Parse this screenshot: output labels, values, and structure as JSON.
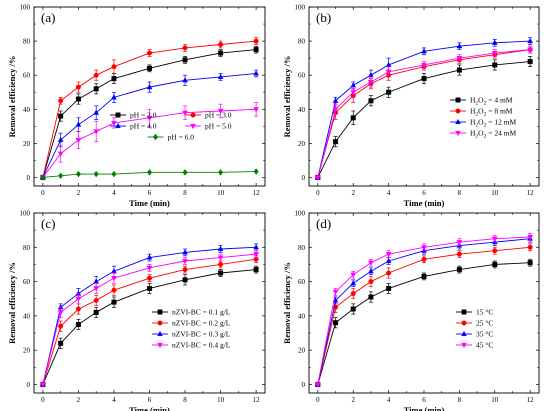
{
  "chart_data": [
    {
      "type": "line",
      "panel_label": "(a)",
      "xlabel": "Time (min)",
      "ylabel": "Removal efficiency /%",
      "xlim": [
        -0.5,
        12.5
      ],
      "ylim": [
        -5,
        100
      ],
      "x_ticks": [
        0,
        1,
        2,
        3,
        4,
        5,
        6,
        7,
        8,
        9,
        10,
        11,
        12
      ],
      "x_tick_labels": [
        "0",
        "2",
        "4",
        "6",
        "8",
        "10",
        "12"
      ],
      "y_ticks": [
        0,
        20,
        40,
        60,
        80,
        100
      ],
      "legend_position": "middle-right",
      "legend_columns": 2,
      "x": [
        0,
        1,
        2,
        3,
        4,
        6,
        8,
        10,
        12
      ],
      "series": [
        {
          "name": "pH = 2.0",
          "color": "#000000",
          "marker": "square",
          "values": [
            0,
            36,
            46,
            52,
            58,
            64,
            69,
            73,
            75
          ],
          "errors": [
            0,
            3,
            3,
            3,
            3,
            2,
            2,
            2,
            2
          ]
        },
        {
          "name": "pH = 3.0",
          "color": "#ff0000",
          "marker": "circle",
          "values": [
            0,
            45,
            53,
            60,
            65,
            73,
            76,
            78,
            80
          ],
          "errors": [
            0,
            2,
            3,
            3,
            4,
            2,
            2,
            2,
            2
          ]
        },
        {
          "name": "pH = 4.0",
          "color": "#0000ff",
          "marker": "triangle-up",
          "values": [
            0,
            22,
            31,
            38,
            47,
            53,
            57,
            59,
            61
          ],
          "errors": [
            0,
            4,
            4,
            4,
            3,
            3,
            3,
            2,
            2
          ]
        },
        {
          "name": "pH = 5.0",
          "color": "#ff00ff",
          "marker": "triangle-down",
          "values": [
            0,
            14,
            22,
            27,
            32,
            35,
            38,
            39,
            40
          ],
          "errors": [
            0,
            5,
            5,
            6,
            3,
            5,
            4,
            4,
            4
          ]
        },
        {
          "name": "pH = 6.0",
          "color": "#008000",
          "marker": "diamond",
          "values": [
            0,
            1,
            2,
            2,
            2,
            3,
            3,
            3,
            3.5
          ],
          "errors": [
            0,
            0,
            0,
            0,
            0,
            0,
            0,
            0,
            0
          ]
        }
      ]
    },
    {
      "type": "line",
      "panel_label": "(b)",
      "xlabel": "Time (min)",
      "ylabel": "Removal efficiency /%",
      "xlim": [
        -0.5,
        12.5
      ],
      "ylim": [
        -5,
        100
      ],
      "x_ticks": [
        0,
        1,
        2,
        3,
        4,
        5,
        6,
        7,
        8,
        9,
        10,
        11,
        12
      ],
      "x_tick_labels": [
        "0",
        "2",
        "4",
        "6",
        "8",
        "10",
        "12"
      ],
      "y_ticks": [
        0,
        20,
        40,
        60,
        80,
        100
      ],
      "legend_position": "bottom-right",
      "legend_columns": 1,
      "x": [
        0,
        1,
        2,
        3,
        4,
        6,
        8,
        10,
        12
      ],
      "series": [
        {
          "name": "H₂O₂ = 4 mM",
          "color": "#000000",
          "marker": "square",
          "values": [
            0,
            21,
            35,
            45,
            50,
            58,
            63,
            66,
            68
          ],
          "errors": [
            0,
            3,
            4,
            3,
            3,
            3,
            3,
            3,
            3
          ]
        },
        {
          "name": "H₂O₂ = 8 mM",
          "color": "#ff0000",
          "marker": "circle",
          "values": [
            0,
            38,
            48,
            55,
            60,
            65,
            69,
            72,
            75
          ],
          "errors": [
            0,
            4,
            4,
            3,
            3,
            2,
            2,
            2,
            2
          ]
        },
        {
          "name": "H₂O₂ = 12 mM",
          "color": "#0000ff",
          "marker": "triangle-up",
          "values": [
            0,
            45,
            54,
            60,
            66,
            74,
            77,
            79,
            80
          ],
          "errors": [
            0,
            2,
            2,
            3,
            4,
            2,
            2,
            2,
            2
          ]
        },
        {
          "name": "H₂O₂ = 24 mM",
          "color": "#ff00ff",
          "marker": "triangle-down",
          "values": [
            0,
            40,
            50,
            56,
            62,
            66,
            70,
            73,
            75
          ],
          "errors": [
            0,
            3,
            3,
            3,
            3,
            2,
            2,
            2,
            2
          ]
        }
      ]
    },
    {
      "type": "line",
      "panel_label": "(c)",
      "xlabel": "Time (min)",
      "ylabel": "Removal efficiency /%",
      "xlim": [
        -0.5,
        12.5
      ],
      "ylim": [
        -5,
        100
      ],
      "x_ticks": [
        0,
        1,
        2,
        3,
        4,
        5,
        6,
        7,
        8,
        9,
        10,
        11,
        12
      ],
      "x_tick_labels": [
        "0",
        "2",
        "4",
        "6",
        "8",
        "10",
        "12"
      ],
      "y_ticks": [
        0,
        20,
        40,
        60,
        80,
        100
      ],
      "legend_position": "bottom-right",
      "legend_columns": 1,
      "x": [
        0,
        1,
        2,
        3,
        4,
        6,
        8,
        10,
        12
      ],
      "series": [
        {
          "name": "nZVI-BC = 0.1 g/L",
          "color": "#000000",
          "marker": "square",
          "values": [
            0,
            24,
            35,
            42,
            48,
            56,
            61,
            65,
            67
          ],
          "errors": [
            0,
            3,
            3,
            3,
            3,
            3,
            3,
            2,
            2
          ]
        },
        {
          "name": "nZVI-BC = 0.2 g/L",
          "color": "#ff0000",
          "marker": "circle",
          "values": [
            0,
            34,
            44,
            49,
            55,
            62,
            67,
            70,
            73
          ],
          "errors": [
            0,
            3,
            3,
            3,
            3,
            2,
            2,
            2,
            2
          ]
        },
        {
          "name": "nZVI-BC = 0.3 g/L",
          "color": "#0000ff",
          "marker": "triangle-up",
          "values": [
            0,
            45,
            53,
            60,
            66,
            74,
            77,
            79,
            80
          ],
          "errors": [
            0,
            2,
            3,
            3,
            3,
            2,
            2,
            2,
            2
          ]
        },
        {
          "name": "nZVI-BC = 0.4 g/L",
          "color": "#ff00ff",
          "marker": "triangle-down",
          "values": [
            0,
            42,
            50,
            56,
            62,
            68,
            72,
            74,
            76
          ],
          "errors": [
            0,
            3,
            3,
            3,
            3,
            2,
            2,
            2,
            2
          ]
        }
      ]
    },
    {
      "type": "line",
      "panel_label": "(d)",
      "xlabel": "Time (min)",
      "ylabel": "Removal efficiency /%",
      "xlim": [
        -0.5,
        12.5
      ],
      "ylim": [
        -5,
        100
      ],
      "x_ticks": [
        0,
        1,
        2,
        3,
        4,
        5,
        6,
        7,
        8,
        9,
        10,
        11,
        12
      ],
      "x_tick_labels": [
        "0",
        "2",
        "4",
        "6",
        "8",
        "10",
        "12"
      ],
      "y_ticks": [
        0,
        20,
        40,
        60,
        80,
        100
      ],
      "legend_position": "bottom-right",
      "legend_columns": 1,
      "x": [
        0,
        1,
        2,
        3,
        4,
        6,
        8,
        10,
        12
      ],
      "series": [
        {
          "name": "15 °C",
          "color": "#000000",
          "marker": "square",
          "values": [
            0,
            36,
            44,
            51,
            56,
            63,
            67,
            70,
            71
          ],
          "errors": [
            0,
            3,
            3,
            3,
            3,
            2,
            2,
            2,
            2
          ]
        },
        {
          "name": "25 °C",
          "color": "#ff0000",
          "marker": "circle",
          "values": [
            0,
            45,
            53,
            60,
            65,
            73,
            76,
            78,
            80
          ],
          "errors": [
            0,
            3,
            3,
            3,
            3,
            2,
            2,
            2,
            2
          ]
        },
        {
          "name": "35 °C",
          "color": "#0000ff",
          "marker": "triangle-up",
          "values": [
            0,
            49,
            59,
            66,
            72,
            78,
            81,
            83,
            85
          ],
          "errors": [
            0,
            2,
            2,
            2,
            2,
            2,
            2,
            2,
            2
          ]
        },
        {
          "name": "45 °C",
          "color": "#ff00ff",
          "marker": "triangle-down",
          "values": [
            0,
            54,
            64,
            71,
            76,
            80,
            83,
            85,
            86
          ],
          "errors": [
            0,
            2,
            2,
            2,
            2,
            2,
            2,
            2,
            2
          ]
        }
      ]
    }
  ]
}
